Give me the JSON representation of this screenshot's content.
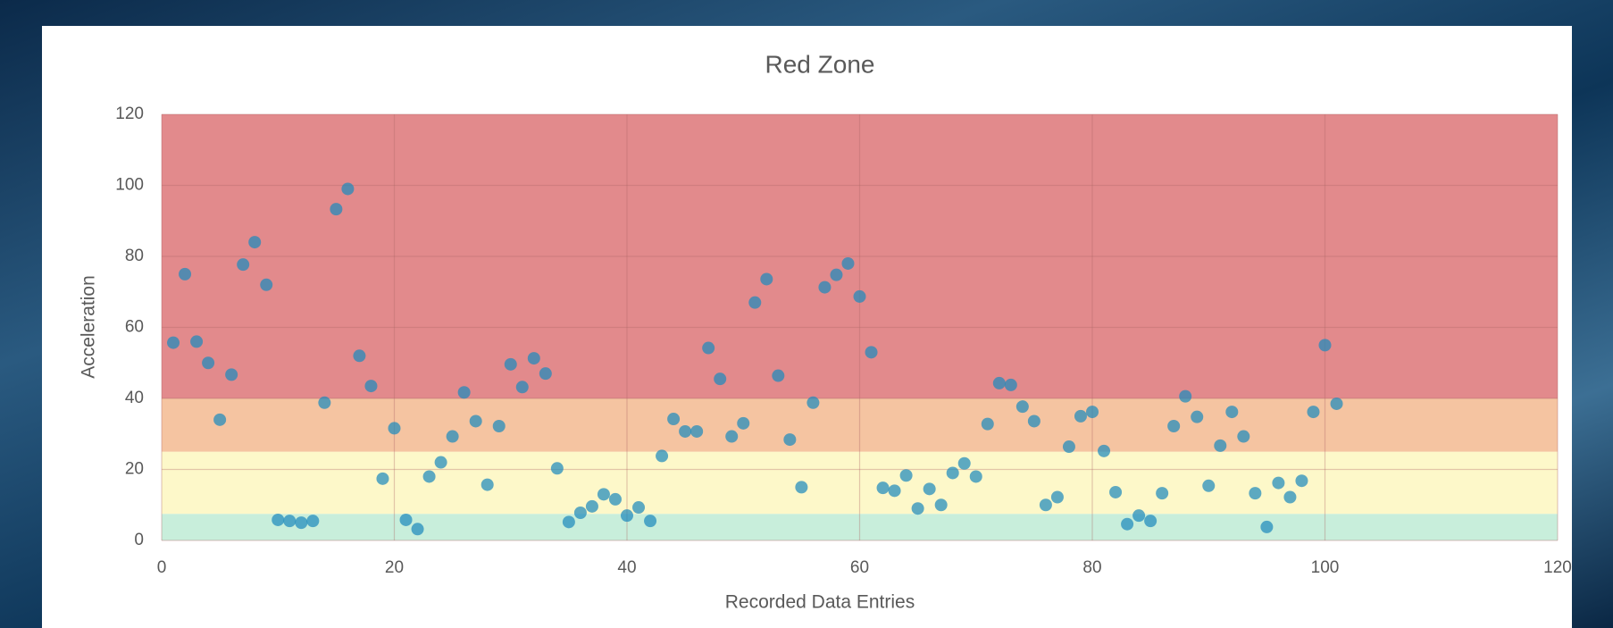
{
  "chart_data": {
    "type": "scatter",
    "title": "Red Zone",
    "x_label": "Recorded Data Entries",
    "y_label": "Acceleration",
    "xlim": [
      0,
      120
    ],
    "xticks": [
      0,
      20,
      40,
      60,
      80,
      100,
      120
    ],
    "ylim": [
      0,
      120
    ],
    "yticks": [
      0,
      20,
      40,
      60,
      80,
      100,
      120
    ],
    "grid": true,
    "bands": [
      {
        "from": 0,
        "to": 7.5,
        "color": "#c8eedb"
      },
      {
        "from": 7.5,
        "to": 25,
        "color": "#fdf8c9"
      },
      {
        "from": 25,
        "to": 40,
        "color": "#f5c4a1"
      },
      {
        "from": 40,
        "to": 120,
        "color": "#e28a8c"
      }
    ],
    "series": [
      {
        "color": "#1f8bbd",
        "x": [
          1,
          2,
          3,
          4,
          5,
          6,
          7,
          8,
          9,
          10,
          11,
          12,
          13,
          14,
          15,
          16,
          17,
          18,
          19,
          20,
          21,
          22,
          23,
          24,
          25,
          26,
          27,
          28,
          29,
          30,
          31,
          32,
          33,
          34,
          35,
          36,
          37,
          38,
          39,
          40,
          41,
          42,
          43,
          44,
          45,
          46,
          47,
          48,
          49,
          50,
          51,
          52,
          53,
          54,
          55,
          56,
          57,
          58,
          59,
          60,
          61,
          62,
          63,
          64,
          65,
          66,
          67,
          68,
          69,
          70,
          71,
          72,
          73,
          74,
          75,
          76,
          77,
          78,
          79,
          80,
          81,
          82,
          83,
          84,
          85,
          86,
          87,
          88,
          89,
          90,
          91,
          92,
          93,
          94,
          95,
          96,
          97,
          98,
          99,
          100,
          101
        ],
        "values": [
          55.7,
          75,
          56,
          50,
          34,
          46.7,
          77.7,
          84,
          72,
          5.8,
          5.5,
          5,
          5.5,
          38.8,
          93.3,
          99,
          52,
          43.5,
          17.4,
          31.6,
          5.8,
          3.2,
          18,
          22,
          29.3,
          41.7,
          33.6,
          15.7,
          32.2,
          49.6,
          43.2,
          51.3,
          47,
          20.3,
          5.2,
          7.8,
          9.6,
          13,
          11.6,
          7,
          9.3,
          5.5,
          23.8,
          34.2,
          30.7,
          30.7,
          54.2,
          45.5,
          29.3,
          33,
          67,
          73.6,
          46.4,
          28.4,
          15,
          38.8,
          71.3,
          74.8,
          78,
          68.7,
          53,
          14.8,
          14,
          18.3,
          9,
          14.5,
          10,
          19,
          21.7,
          18,
          32.8,
          44.3,
          43.8,
          37.7,
          33.6,
          10,
          12.2,
          26.4,
          35,
          36.2,
          25.2,
          13.6,
          4.6,
          7,
          5.5,
          13.3,
          32.2,
          40.6,
          34.8,
          15.4,
          26.7,
          36.2,
          29.3,
          13.3,
          3.8,
          16.2,
          12.2,
          16.8,
          36.2,
          55,
          38.5
        ]
      }
    ]
  }
}
